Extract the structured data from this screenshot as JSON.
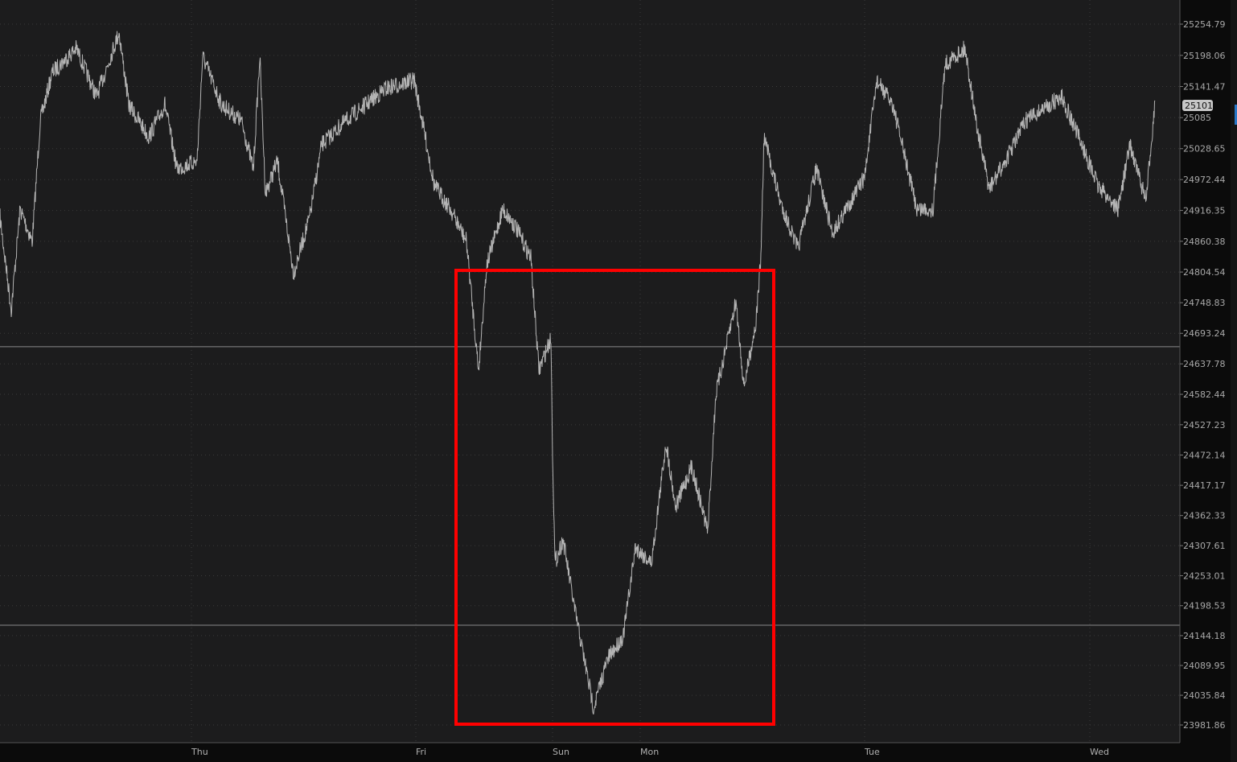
{
  "chart_data": {
    "type": "line",
    "title": "",
    "xlabel": "",
    "ylabel": "",
    "ylim": [
      23960,
      25275
    ],
    "grid": true,
    "y_ticks": [
      "25254.79",
      "25198.06",
      "25141.47",
      "25085",
      "25028.65",
      "24972.44",
      "24916.35",
      "24860.38",
      "24804.54",
      "24748.83",
      "24693.24",
      "24637.78",
      "24582.44",
      "24527.23",
      "24472.14",
      "24417.17",
      "24362.33",
      "24307.61",
      "24253.01",
      "24198.53",
      "24144.18",
      "24089.95",
      "24035.84",
      "23981.86"
    ],
    "x_ticks": [
      "Thu",
      "Fri",
      "Sun",
      "Mon",
      "Tue",
      "Wed"
    ],
    "last_price_label": "25101",
    "horizontal_levels": [
      24669,
      24163
    ],
    "series": [
      {
        "color": "#b4b4b4",
        "values": [
          24904,
          24736,
          24919,
          24860,
          25079,
          25167,
          25211,
          25123,
          25240,
          25109,
          25050,
          25109,
          24992,
          25006,
          25196,
          25109,
          25079,
          24992,
          25196,
          24948,
          25006,
          24802,
          24904,
          25036,
          25079,
          25138,
          25153,
          25079,
          24962,
          24919,
          24860,
          24626,
          24816,
          24919,
          24889,
          24831,
          24626,
          24685,
          24480,
          24276,
          24319,
          24188,
          24013,
          24100,
          24144,
          24305,
          24276,
          24495,
          24378,
          24451,
          24334,
          24582,
          24751,
          24597,
          24714,
          24831,
          25050,
          24933,
          24846,
          24992,
          24875,
          24977,
          25152,
          25109,
          24919,
          24919,
          25182,
          25211,
          25065,
          24955,
          25006,
          25079,
          25123,
          25036,
          24962,
          24919,
          25036,
          24933,
          25116
        ]
      }
    ],
    "highlight_box_color": "#ff0000"
  }
}
